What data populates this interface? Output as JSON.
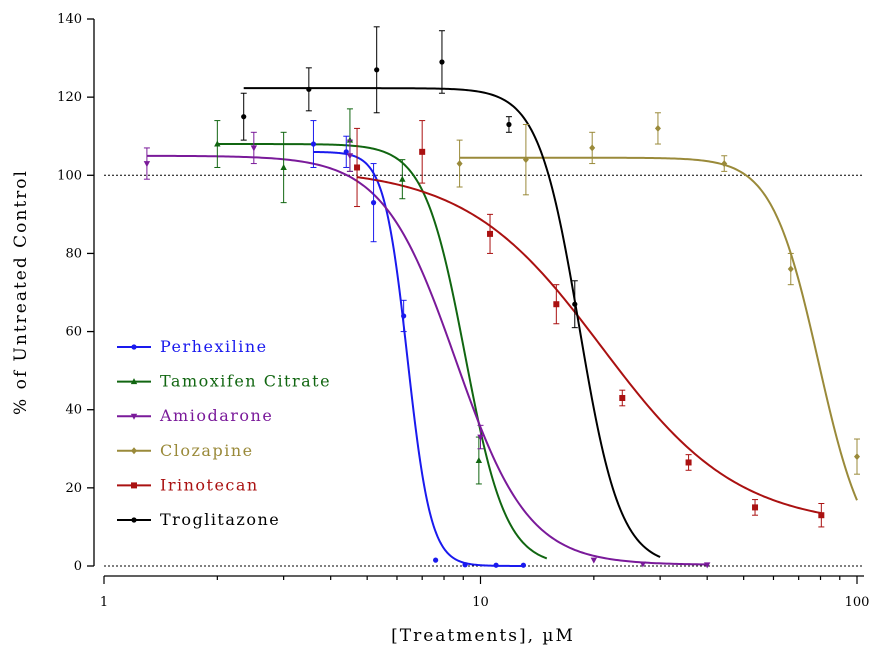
{
  "chart_data": {
    "type": "line",
    "title": "",
    "xlabel": "[Treatments], µM",
    "ylabel": "% of Untreated Control",
    "x_scale": "log",
    "xlim": [
      1,
      120
    ],
    "ylim": [
      0,
      140
    ],
    "x_ticks": [
      1,
      10,
      100
    ],
    "x_tick_labels": [
      "1",
      "10",
      "100"
    ],
    "y_ticks": [
      0,
      20,
      40,
      60,
      80,
      100,
      120,
      140
    ],
    "y_tick_labels": [
      "0",
      "20",
      "40",
      "60",
      "80",
      "100",
      "120",
      "140"
    ],
    "reference_lines": [
      0,
      100
    ],
    "legend_position": "bottom-left",
    "series": [
      {
        "name": "Perhexiline",
        "color": "#1a1aee",
        "marker": "circle",
        "points": [
          {
            "x": 3.6,
            "y": 108,
            "err": 6
          },
          {
            "x": 4.4,
            "y": 106,
            "err": 4
          },
          {
            "x": 5.2,
            "y": 93,
            "err": 10
          },
          {
            "x": 6.25,
            "y": 64,
            "err": 4
          },
          {
            "x": 7.6,
            "y": 1.5,
            "err": 0.5
          },
          {
            "x": 9.1,
            "y": 0.3,
            "err": 0.2
          },
          {
            "x": 11,
            "y": 0.2,
            "err": 0.2
          },
          {
            "x": 13,
            "y": 0.2,
            "err": 0.2
          }
        ],
        "fit": {
          "top": 106,
          "bottom": 0,
          "ec50": 6.4,
          "hill": 14,
          "xmin": 3.6,
          "xmax": 13
        }
      },
      {
        "name": "Tamoxifen Citrate",
        "color": "#116611",
        "marker": "triangle",
        "points": [
          {
            "x": 2.0,
            "y": 108,
            "err": 6
          },
          {
            "x": 3.0,
            "y": 102,
            "err": 9
          },
          {
            "x": 4.5,
            "y": 109,
            "err": 8
          },
          {
            "x": 6.2,
            "y": 99,
            "err": 5
          },
          {
            "x": 9.9,
            "y": 27,
            "err": 6
          }
        ],
        "fit": {
          "top": 108,
          "bottom": 0,
          "ec50": 9.1,
          "hill": 8,
          "xmin": 2.0,
          "xmax": 15
        }
      },
      {
        "name": "Amiodarone",
        "color": "#7a1a9a",
        "marker": "triangle-down",
        "points": [
          {
            "x": 1.3,
            "y": 103,
            "err": 4
          },
          {
            "x": 2.5,
            "y": 107,
            "err": 4
          },
          {
            "x": 4.5,
            "y": 105,
            "err": 4
          },
          {
            "x": 10,
            "y": 33,
            "err": 3
          },
          {
            "x": 20,
            "y": 1.5,
            "err": 0.5
          },
          {
            "x": 27,
            "y": 0.5,
            "err": 0.3
          },
          {
            "x": 40,
            "y": 0.3,
            "err": 0.2
          }
        ],
        "fit": {
          "top": 105,
          "bottom": 0.3,
          "ec50": 8.6,
          "hill": 4.5,
          "xmin": 1.3,
          "xmax": 40
        }
      },
      {
        "name": "Clozapine",
        "color": "#9a8a3a",
        "marker": "diamond",
        "points": [
          {
            "x": 8.8,
            "y": 103,
            "err": 6
          },
          {
            "x": 13.2,
            "y": 104,
            "err": 9
          },
          {
            "x": 19.8,
            "y": 107,
            "err": 4
          },
          {
            "x": 29.6,
            "y": 112,
            "err": 4
          },
          {
            "x": 44.4,
            "y": 103,
            "err": 2
          },
          {
            "x": 66.7,
            "y": 76,
            "err": 4
          },
          {
            "x": 100,
            "y": 28,
            "err": 4.5
          }
        ],
        "fit": {
          "top": 104.5,
          "bottom": 0,
          "ec50": 79,
          "hill": 7,
          "xmin": 8.8,
          "xmax": 100
        }
      },
      {
        "name": "Irinotecan",
        "color": "#aa1111",
        "marker": "square",
        "points": [
          {
            "x": 4.7,
            "y": 102,
            "err": 10
          },
          {
            "x": 7.0,
            "y": 106,
            "err": 8
          },
          {
            "x": 10.6,
            "y": 85,
            "err": 5
          },
          {
            "x": 15.9,
            "y": 67,
            "err": 5
          },
          {
            "x": 23.8,
            "y": 43,
            "err": 2
          },
          {
            "x": 35.7,
            "y": 26.5,
            "err": 2
          },
          {
            "x": 53.6,
            "y": 15,
            "err": 2
          },
          {
            "x": 80.4,
            "y": 13,
            "err": 3
          }
        ],
        "fit": {
          "top": 102,
          "bottom": 10,
          "ec50": 21,
          "hill": 2.4,
          "xmin": 4.7,
          "xmax": 80.4
        }
      },
      {
        "name": "Troglitazone",
        "color": "#000000",
        "marker": "circle",
        "points": [
          {
            "x": 2.35,
            "y": 115,
            "err": 6
          },
          {
            "x": 3.5,
            "y": 122,
            "err": 5.5
          },
          {
            "x": 5.3,
            "y": 127,
            "err": 11
          },
          {
            "x": 7.9,
            "y": 129,
            "err": 8
          },
          {
            "x": 11.9,
            "y": 113,
            "err": 2
          },
          {
            "x": 17.8,
            "y": 67,
            "err": 6
          }
        ],
        "fit": {
          "top": 122.3,
          "bottom": 0,
          "ec50": 18.3,
          "hill": 8,
          "xmin": 2.35,
          "xmax": 30
        }
      }
    ]
  }
}
